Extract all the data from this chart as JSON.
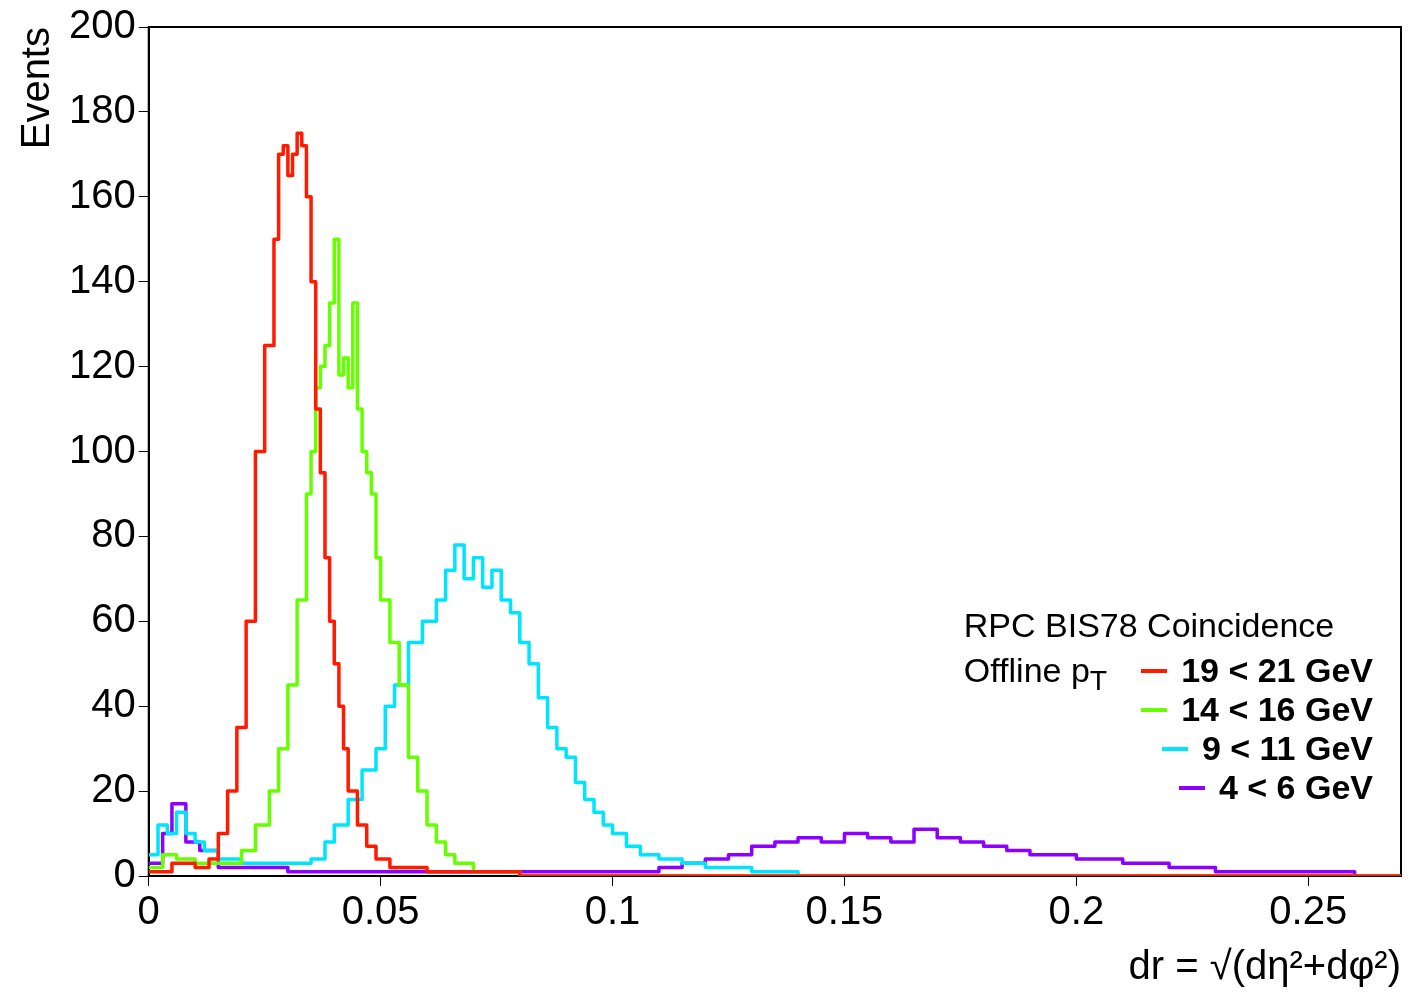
{
  "chart_data": {
    "type": "step",
    "xlabel": "dr = √(dη²+dφ²)",
    "ylabel": "Events",
    "legend_title": "RPC BIS78 Coincidence",
    "annotations": [
      "Offline p$_{T}$"
    ],
    "xlim": [
      0,
      0.27
    ],
    "xticks": [
      0,
      0.05,
      0.1,
      0.15,
      0.2,
      0.25
    ],
    "ylim": [
      0,
      200
    ],
    "yticks": [
      0,
      20,
      40,
      60,
      80,
      100,
      120,
      140,
      160,
      180,
      200
    ],
    "grid": false,
    "legend": "bottom right",
    "series": [
      {
        "name": "19 < 21 GeV",
        "color": "#ff1a00",
        "x": [
          0,
          0.005,
          0.01,
          0.013,
          0.015,
          0.017,
          0.019,
          0.021,
          0.023,
          0.025,
          0.027,
          0.028,
          0.029,
          0.03,
          0.031,
          0.032,
          0.033,
          0.034,
          0.035,
          0.036,
          0.037,
          0.038,
          0.039,
          0.04,
          0.041,
          0.042,
          0.043,
          0.045,
          0.047,
          0.049,
          0.052,
          0.06,
          0.08,
          0.27
        ],
        "values": [
          1,
          3,
          2,
          4,
          10,
          20,
          35,
          60,
          100,
          125,
          150,
          170,
          172,
          165,
          170,
          175,
          172,
          160,
          140,
          110,
          95,
          75,
          60,
          50,
          40,
          30,
          20,
          12,
          7,
          4,
          2,
          1,
          0,
          0
        ]
      },
      {
        "name": "14 < 16 GeV",
        "color": "#66ff00",
        "x": [
          0,
          0.003,
          0.006,
          0.01,
          0.015,
          0.02,
          0.023,
          0.026,
          0.028,
          0.03,
          0.032,
          0.034,
          0.035,
          0.036,
          0.037,
          0.038,
          0.039,
          0.04,
          0.041,
          0.042,
          0.043,
          0.044,
          0.045,
          0.046,
          0.047,
          0.048,
          0.049,
          0.05,
          0.052,
          0.054,
          0.056,
          0.058,
          0.06,
          0.062,
          0.064,
          0.066,
          0.07,
          0.08,
          0.27
        ],
        "values": [
          2,
          5,
          4,
          3,
          3,
          6,
          12,
          20,
          30,
          45,
          65,
          90,
          100,
          115,
          120,
          125,
          135,
          150,
          118,
          122,
          115,
          135,
          110,
          100,
          95,
          90,
          75,
          65,
          55,
          45,
          28,
          20,
          12,
          8,
          5,
          3,
          1,
          0,
          0
        ]
      },
      {
        "name": "9 < 11 GeV",
        "color": "#00e5ff",
        "x": [
          0,
          0.002,
          0.004,
          0.006,
          0.008,
          0.01,
          0.012,
          0.015,
          0.02,
          0.025,
          0.03,
          0.035,
          0.038,
          0.04,
          0.043,
          0.046,
          0.049,
          0.051,
          0.053,
          0.056,
          0.059,
          0.062,
          0.064,
          0.066,
          0.068,
          0.07,
          0.072,
          0.074,
          0.076,
          0.078,
          0.08,
          0.082,
          0.084,
          0.086,
          0.088,
          0.09,
          0.092,
          0.094,
          0.096,
          0.098,
          0.1,
          0.103,
          0.106,
          0.11,
          0.115,
          0.12,
          0.13,
          0.14,
          0.27
        ],
        "values": [
          5,
          12,
          10,
          15,
          10,
          8,
          6,
          4,
          3,
          3,
          3,
          4,
          8,
          12,
          18,
          25,
          30,
          40,
          45,
          55,
          60,
          65,
          72,
          78,
          70,
          75,
          68,
          72,
          65,
          62,
          55,
          50,
          42,
          35,
          30,
          28,
          22,
          18,
          15,
          12,
          10,
          7,
          5,
          4,
          3,
          2,
          1,
          0,
          0
        ]
      },
      {
        "name": "4 < 6 GeV",
        "color": "#8c00ff",
        "x": [
          0,
          0.003,
          0.005,
          0.008,
          0.011,
          0.015,
          0.03,
          0.06,
          0.09,
          0.11,
          0.115,
          0.12,
          0.125,
          0.13,
          0.135,
          0.14,
          0.145,
          0.15,
          0.155,
          0.16,
          0.165,
          0.17,
          0.175,
          0.18,
          0.185,
          0.19,
          0.2,
          0.21,
          0.22,
          0.23,
          0.25,
          0.26,
          0.27
        ],
        "values": [
          3,
          10,
          17,
          8,
          6,
          2,
          1,
          1,
          1,
          2,
          3,
          4,
          5,
          7,
          8,
          9,
          8,
          10,
          9,
          8,
          11,
          9,
          8,
          7,
          6,
          5,
          4,
          3,
          2,
          1,
          1,
          0,
          0
        ]
      }
    ]
  }
}
